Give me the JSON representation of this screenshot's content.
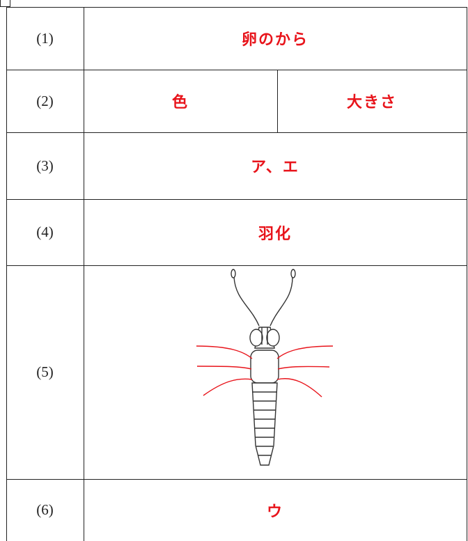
{
  "rows": [
    {
      "label": "(1)",
      "answer": "卵のから"
    },
    {
      "label": "(2)",
      "answers": [
        "色",
        "大きさ"
      ]
    },
    {
      "label": "(3)",
      "answer": "ア、エ"
    },
    {
      "label": "(4)",
      "answer": "羽化"
    },
    {
      "label": "(5)"
    },
    {
      "label": "(6)",
      "answer": "ウ"
    }
  ]
}
